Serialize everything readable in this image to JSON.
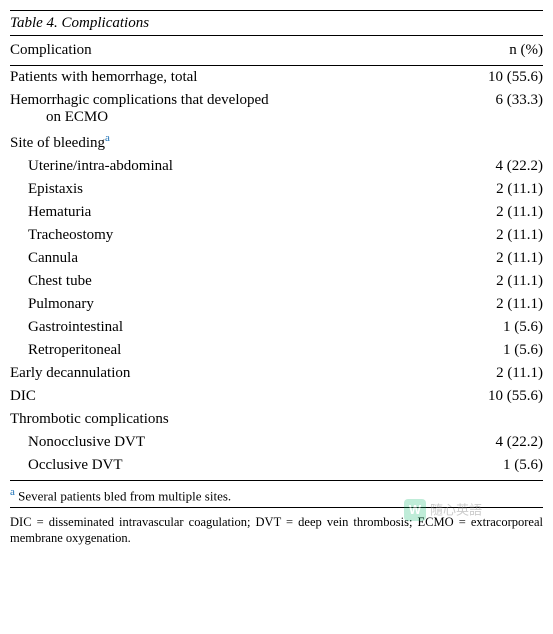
{
  "table": {
    "title": "Table 4.  Complications",
    "col1_header": "Complication",
    "col2_header": "n (%)",
    "footnote_marker": "a",
    "footnote_text": "Several patients bled from multiple sites.",
    "abbreviations": "DIC = disseminated intravascular coagulation;    DVT = deep vein thrombosis;    ECMO = extracorporeal membrane oxygenation.",
    "rows": [
      {
        "label": "Patients with hemorrhage, total",
        "value": "10 (55.6)",
        "indent": 0,
        "sup": false
      },
      {
        "label": "Hemorrhagic complications that developed on ECMO",
        "value": "6 (33.3)",
        "indent": 0,
        "sup": false,
        "wrap": true
      },
      {
        "label": "Site of bleeding",
        "value": "",
        "indent": 0,
        "sup": true
      },
      {
        "label": "Uterine/intra-abdominal",
        "value": "4 (22.2)",
        "indent": 2,
        "sup": false
      },
      {
        "label": "Epistaxis",
        "value": "2 (11.1)",
        "indent": 2,
        "sup": false
      },
      {
        "label": "Hematuria",
        "value": "2 (11.1)",
        "indent": 2,
        "sup": false
      },
      {
        "label": "Tracheostomy",
        "value": "2 (11.1)",
        "indent": 2,
        "sup": false
      },
      {
        "label": "Cannula",
        "value": "2 (11.1)",
        "indent": 2,
        "sup": false
      },
      {
        "label": "Chest tube",
        "value": "2 (11.1)",
        "indent": 2,
        "sup": false
      },
      {
        "label": "Pulmonary",
        "value": "2 (11.1)",
        "indent": 2,
        "sup": false
      },
      {
        "label": "Gastrointestinal",
        "value": "1 (5.6)",
        "indent": 2,
        "sup": false
      },
      {
        "label": "Retroperitoneal",
        "value": "1 (5.6)",
        "indent": 2,
        "sup": false
      },
      {
        "label": "Early decannulation",
        "value": "2 (11.1)",
        "indent": 0,
        "sup": false
      },
      {
        "label": "DIC",
        "value": "10 (55.6)",
        "indent": 0,
        "sup": false
      },
      {
        "label": "Thrombotic complications",
        "value": "",
        "indent": 0,
        "sup": false
      },
      {
        "label": "Nonocclusive DVT",
        "value": "4 (22.2)",
        "indent": 2,
        "sup": false
      },
      {
        "label": "Occlusive DVT",
        "value": "1 (5.6)",
        "indent": 2,
        "sup": false
      }
    ]
  },
  "watermark": {
    "logo_text": "W",
    "label": "隨心英語"
  }
}
